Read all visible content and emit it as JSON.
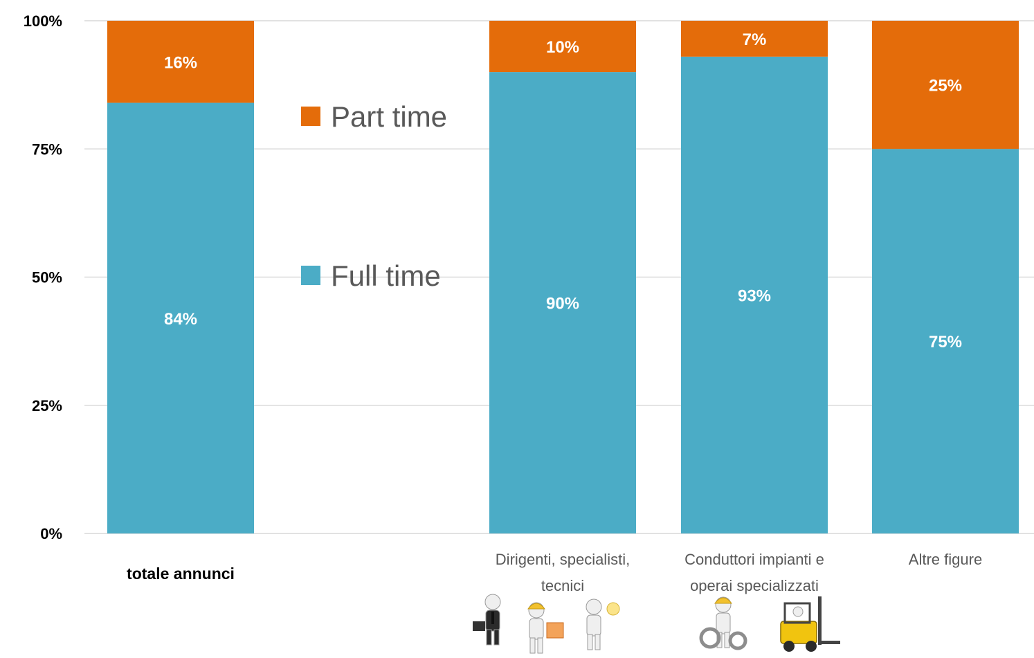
{
  "chart_data": {
    "type": "bar",
    "stacked": true,
    "percent_stacked": true,
    "categories": [
      {
        "label": "totale annunci",
        "lines": [
          "totale annunci"
        ],
        "emphasis": true
      },
      {
        "label": "",
        "lines": [],
        "emphasis": false
      },
      {
        "label": "Dirigenti, specialisti, tecnici",
        "lines": [
          "Dirigenti, specialisti,",
          "tecnici"
        ],
        "emphasis": false
      },
      {
        "label": "Conduttori impianti e operai specializzati",
        "lines": [
          "Conduttori impianti e",
          "operai specializzati"
        ],
        "emphasis": false
      },
      {
        "label": "Altre figure",
        "lines": [
          "Altre figure"
        ],
        "emphasis": false
      }
    ],
    "series": [
      {
        "name": "Full time",
        "color": "#4BACC6",
        "values": [
          84,
          null,
          90,
          93,
          75
        ],
        "labels": [
          "84%",
          "",
          "90%",
          "93%",
          "75%"
        ]
      },
      {
        "name": "Part time",
        "color": "#E46C0A",
        "values": [
          16,
          null,
          10,
          7,
          25
        ],
        "labels": [
          "16%",
          "",
          "10%",
          "7%",
          "25%"
        ]
      }
    ],
    "ylim": [
      0,
      100
    ],
    "yticks": [
      0,
      25,
      50,
      75,
      100
    ],
    "ytick_labels": [
      "0%",
      "25%",
      "50%",
      "75%",
      "100%"
    ],
    "grid": true,
    "legend": {
      "placement": "inside-left",
      "order": [
        "Part time",
        "Full time"
      ]
    },
    "title": "",
    "xlabel": "",
    "ylabel": ""
  },
  "illustrations": [
    {
      "category_index": 2,
      "icons": [
        "businessman-with-briefcase-icon",
        "worker-with-hard-hat-icon",
        "scientist-with-lightbulb-icon"
      ]
    },
    {
      "category_index": 3,
      "icons": [
        "worker-with-gears-icon",
        "forklift-icon"
      ]
    }
  ]
}
